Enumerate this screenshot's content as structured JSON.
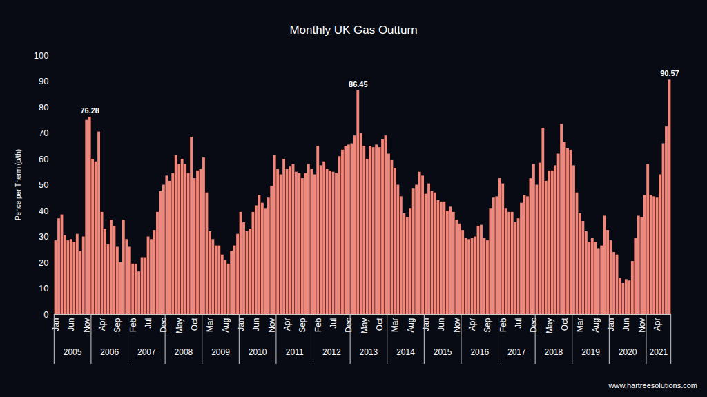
{
  "chart_data": {
    "type": "bar",
    "title": "Monthly UK Gas Outturn",
    "ylabel": "Pence per Therm (p/th)",
    "source": "www.hartreesolutions.com",
    "color": "#f4877a",
    "ylim": [
      0,
      100
    ],
    "yticks": [
      0,
      10,
      20,
      30,
      40,
      50,
      60,
      70,
      80,
      90,
      100
    ],
    "grid": false,
    "categories": [
      "Jan",
      null,
      null,
      null,
      null,
      "Jun",
      null,
      null,
      null,
      null,
      "Nov",
      null,
      null,
      null,
      null,
      "Apr",
      null,
      null,
      null,
      null,
      "Sep",
      null,
      null,
      null,
      null,
      "Feb",
      null,
      null,
      null,
      null,
      "Jul",
      null,
      null,
      null,
      null,
      "Dec",
      null,
      null,
      null,
      null,
      "May",
      null,
      null,
      null,
      null,
      "Oct",
      null,
      null,
      null,
      null,
      "Mar",
      null,
      null,
      null,
      null,
      "Aug",
      null,
      null,
      null,
      null,
      "Jan",
      null,
      null,
      null,
      null,
      "Jun",
      null,
      null,
      null,
      null,
      "Nov",
      null,
      null,
      null,
      null,
      "Apr",
      null,
      null,
      null,
      null,
      "Sep",
      null,
      null,
      null,
      null,
      "Feb",
      null,
      null,
      null,
      null,
      "Jul",
      null,
      null,
      null,
      null,
      "Dec",
      null,
      null,
      null,
      null,
      "May",
      null,
      null,
      null,
      null,
      "Oct",
      null,
      null,
      null,
      null,
      "Mar",
      null,
      null,
      null,
      null,
      "Aug",
      null,
      null,
      null,
      null,
      "Jan",
      null,
      null,
      null,
      null,
      "Jun",
      null,
      null,
      null,
      null,
      "Nov",
      null,
      null,
      null,
      null,
      "Apr",
      null,
      null,
      null,
      null,
      "Sep",
      null,
      null,
      null,
      null,
      "Feb",
      null,
      null,
      null,
      null,
      "Jul",
      null,
      null,
      null,
      null,
      "Dec",
      null,
      null,
      null,
      null,
      "May",
      null,
      null,
      null,
      null,
      "Oct",
      null,
      null,
      null,
      null,
      "Mar",
      null,
      null,
      null,
      null,
      "Aug",
      null,
      null,
      null,
      null,
      "Jan",
      null,
      null,
      null,
      null,
      "Jun",
      null,
      null,
      null,
      null,
      "Nov",
      null,
      null,
      null,
      null,
      "Apr",
      null,
      null,
      null,
      null
    ],
    "values": [
      28.5,
      37,
      38.5,
      30.5,
      28.5,
      29,
      28,
      31,
      24.5,
      30,
      75,
      76.28,
      60,
      59,
      70.5,
      39.5,
      33,
      27,
      36.5,
      34,
      26,
      20,
      36.5,
      29,
      26,
      19.5,
      19.5,
      16.5,
      22,
      22,
      30,
      29,
      32.5,
      39.5,
      47.5,
      50,
      53.5,
      51.5,
      54.5,
      61.5,
      58,
      60,
      58,
      54.5,
      68.5,
      52.5,
      55.5,
      56,
      60.5,
      47,
      32,
      29,
      26.5,
      26.5,
      23,
      21,
      19.5,
      24.5,
      26.5,
      31,
      39.5,
      35.5,
      32,
      33,
      39.5,
      42,
      46,
      43,
      41,
      45,
      49.5,
      61.5,
      56,
      54,
      60,
      56,
      57,
      58,
      55,
      54.5,
      52.5,
      54.5,
      58,
      56,
      54,
      65,
      57.5,
      59,
      56,
      55.5,
      55,
      54.5,
      61,
      63.5,
      65,
      65.5,
      66,
      69,
      86.45,
      70,
      65,
      60,
      65,
      64.5,
      65.5,
      64.5,
      67.5,
      69,
      62,
      59.5,
      56.5,
      50,
      45.5,
      39,
      37.5,
      41,
      48.5,
      50,
      55,
      53.5,
      46.5,
      50.5,
      47.5,
      47,
      44,
      43.5,
      43.5,
      40,
      41.5,
      39.5,
      36.5,
      35,
      32.5,
      29.5,
      29,
      29.5,
      30,
      34,
      34.5,
      29.5,
      28.5,
      41,
      45,
      45.5,
      52.5,
      50.5,
      41,
      39.5,
      39.5,
      35.5,
      37,
      43,
      46,
      45.5,
      52.5,
      58,
      50,
      58.5,
      72,
      51.5,
      55.5,
      55.5,
      57.5,
      62,
      73.5,
      66.5,
      64,
      63.5,
      57.5,
      47,
      39,
      36,
      32,
      28,
      29.5,
      28,
      25.5,
      26.5,
      38,
      32.5,
      28.5,
      24,
      23,
      14,
      12,
      13.5,
      13,
      20.5,
      29.5,
      38,
      37.5,
      46,
      58,
      46,
      45.5,
      45,
      54,
      66,
      72.5,
      90.57
    ],
    "annotations": [
      {
        "text": "76.28",
        "index": 11
      },
      {
        "text": "86.45",
        "index": 98
      },
      {
        "text": "90.57",
        "index": 199
      }
    ],
    "groups": [
      {
        "label": "2005",
        "size": 12
      },
      {
        "label": "2006",
        "size": 12
      },
      {
        "label": "2007",
        "size": 12
      },
      {
        "label": "2008",
        "size": 12
      },
      {
        "label": "2009",
        "size": 12
      },
      {
        "label": "2010",
        "size": 12
      },
      {
        "label": "2011",
        "size": 12
      },
      {
        "label": "2012",
        "size": 12
      },
      {
        "label": "2013",
        "size": 12
      },
      {
        "label": "2014",
        "size": 12
      },
      {
        "label": "2015",
        "size": 12
      },
      {
        "label": "2016",
        "size": 12
      },
      {
        "label": "2017",
        "size": 12
      },
      {
        "label": "2018",
        "size": 12
      },
      {
        "label": "2019",
        "size": 12
      },
      {
        "label": "2020",
        "size": 12
      },
      {
        "label": "2021",
        "size": 8
      }
    ]
  }
}
